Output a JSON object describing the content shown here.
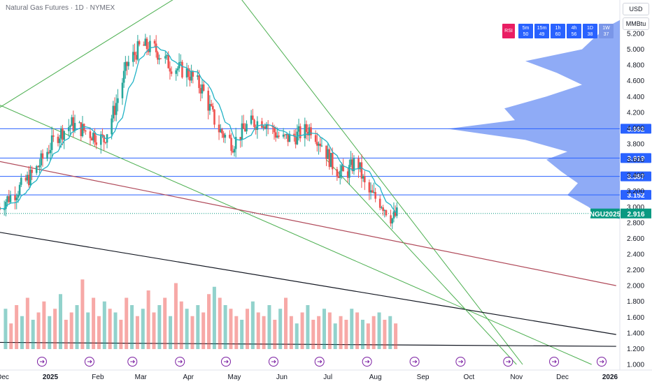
{
  "header": {
    "title": "Natural Gas Futures · 1D · NYMEX"
  },
  "currency_buttons": {
    "currency": "USD",
    "unit": "MMBtu"
  },
  "timeframe_strip": {
    "indicator": "RSI",
    "cells": [
      {
        "tf": "5m",
        "value": "50"
      },
      {
        "tf": "15m",
        "value": "49"
      },
      {
        "tf": "1h",
        "value": "60"
      },
      {
        "tf": "4h",
        "value": "56"
      },
      {
        "tf": "1D",
        "value": "38"
      },
      {
        "tf": "1W",
        "value": "37"
      }
    ]
  },
  "colors": {
    "up": "#26a69a",
    "down": "#ef5350",
    "ma": "#22b3c6",
    "hline": "#2962ff",
    "trend": "#4caf50",
    "red_trend": "#b04a5a",
    "black_trend": "#131722",
    "profile": "#7b9cf5",
    "current": "#089981"
  },
  "chart_data": {
    "type": "candlestick",
    "title": "Natural Gas Futures · 1D · NYMEX",
    "ylim": [
      1.0,
      5.4
    ],
    "y_ticks": [
      "5.200",
      "5.000",
      "4.800",
      "4.600",
      "4.400",
      "4.200",
      "4.000",
      "3.800",
      "3.600",
      "3.400",
      "3.200",
      "3.000",
      "2.800",
      "2.600",
      "2.400",
      "2.200",
      "2.000",
      "1.800",
      "1.600",
      "1.400",
      "1.200",
      "1.000"
    ],
    "x_ticks": [
      {
        "label": "Dec",
        "date": "2024-12-01"
      },
      {
        "label": "2025",
        "date": "2025-01-01",
        "year": true
      },
      {
        "label": "Feb",
        "date": "2025-02-01"
      },
      {
        "label": "Mar",
        "date": "2025-03-01"
      },
      {
        "label": "Apr",
        "date": "2025-04-01"
      },
      {
        "label": "May",
        "date": "2025-05-01"
      },
      {
        "label": "Jun",
        "date": "2025-06-01"
      },
      {
        "label": "Jul",
        "date": "2025-07-01"
      },
      {
        "label": "Aug",
        "date": "2025-08-01"
      },
      {
        "label": "Sep",
        "date": "2025-09-01"
      },
      {
        "label": "Oct",
        "date": "2025-10-01"
      },
      {
        "label": "Nov",
        "date": "2025-11-01"
      },
      {
        "label": "Dec",
        "date": "2025-12-01"
      },
      {
        "label": "2026",
        "date": "2026-01-01",
        "year": true
      }
    ],
    "key_levels": [
      3.992,
      3.619,
      3.387,
      3.152
    ],
    "level_labels": [
      "3.992",
      "3.619",
      "3.387",
      "3.152"
    ],
    "current_price": {
      "symbol": "NGU2025",
      "value": "2.916"
    },
    "price_path": [
      {
        "date": "2024-11-28",
        "price": 3.0
      },
      {
        "date": "2024-12-10",
        "price": 3.2
      },
      {
        "date": "2024-12-22",
        "price": 3.45
      },
      {
        "date": "2025-01-05",
        "price": 3.9
      },
      {
        "date": "2025-01-15",
        "price": 4.05
      },
      {
        "date": "2025-01-25",
        "price": 3.95
      },
      {
        "date": "2025-02-05",
        "price": 3.85
      },
      {
        "date": "2025-02-12",
        "price": 4.25
      },
      {
        "date": "2025-02-20",
        "price": 4.8
      },
      {
        "date": "2025-03-01",
        "price": 5.05
      },
      {
        "date": "2025-03-10",
        "price": 5.0
      },
      {
        "date": "2025-03-20",
        "price": 4.8
      },
      {
        "date": "2025-04-01",
        "price": 4.7
      },
      {
        "date": "2025-04-10",
        "price": 4.5
      },
      {
        "date": "2025-04-20",
        "price": 4.0
      },
      {
        "date": "2025-04-30",
        "price": 3.8
      },
      {
        "date": "2025-05-10",
        "price": 4.05
      },
      {
        "date": "2025-05-20",
        "price": 4.1
      },
      {
        "date": "2025-06-01",
        "price": 3.85
      },
      {
        "date": "2025-06-10",
        "price": 3.9
      },
      {
        "date": "2025-06-20",
        "price": 4.0
      },
      {
        "date": "2025-06-27",
        "price": 3.8
      },
      {
        "date": "2025-07-05",
        "price": 3.5
      },
      {
        "date": "2025-07-12",
        "price": 3.4
      },
      {
        "date": "2025-07-20",
        "price": 3.6
      },
      {
        "date": "2025-07-26",
        "price": 3.2
      },
      {
        "date": "2025-08-05",
        "price": 3.05
      },
      {
        "date": "2025-08-12",
        "price": 2.85
      },
      {
        "date": "2025-08-16",
        "price": 2.92
      }
    ],
    "volume_profile": [
      {
        "price": 5.3,
        "v": 0.05
      },
      {
        "price": 5.15,
        "v": 0.12
      },
      {
        "price": 5.0,
        "v": 0.18
      },
      {
        "price": 4.85,
        "v": 0.45
      },
      {
        "price": 4.7,
        "v": 0.3
      },
      {
        "price": 4.55,
        "v": 0.18
      },
      {
        "price": 4.4,
        "v": 0.35
      },
      {
        "price": 4.25,
        "v": 0.55
      },
      {
        "price": 4.1,
        "v": 0.5
      },
      {
        "price": 3.99,
        "v": 0.82
      },
      {
        "price": 3.85,
        "v": 0.45
      },
      {
        "price": 3.7,
        "v": 0.25
      },
      {
        "price": 3.6,
        "v": 0.35
      },
      {
        "price": 3.45,
        "v": 0.28
      },
      {
        "price": 3.3,
        "v": 0.2
      },
      {
        "price": 3.15,
        "v": 0.25
      },
      {
        "price": 3.0,
        "v": 0.15
      },
      {
        "price": 2.9,
        "v": 0.1
      }
    ],
    "volume": [
      0.55,
      0.35,
      0.6,
      0.45,
      0.7,
      0.4,
      0.5,
      0.65,
      0.45,
      0.55,
      0.75,
      0.4,
      0.5,
      0.6,
      0.95,
      0.5,
      0.7,
      0.45,
      0.65,
      0.55,
      0.5,
      0.4,
      0.7,
      0.6,
      0.45,
      0.55,
      0.8,
      0.5,
      0.6,
      0.7,
      0.45,
      0.9,
      0.65,
      0.55,
      0.45,
      0.6,
      0.5,
      0.75,
      0.85,
      0.7,
      0.6,
      0.55,
      0.45,
      0.4,
      0.55,
      0.65,
      0.5,
      0.45,
      0.6,
      0.4,
      0.55,
      0.7,
      0.45,
      0.35,
      0.5,
      0.6,
      0.4,
      0.45,
      0.55,
      0.5,
      0.35,
      0.45,
      0.4,
      0.55,
      0.5,
      0.4,
      0.35,
      0.45,
      0.5,
      0.4,
      0.45,
      0.35
    ],
    "event_markers": [
      "2025-01-01",
      "2025-02-01",
      "2025-03-01",
      "2025-04-01",
      "2025-05-01",
      "2025-06-01",
      "2025-07-01",
      "2025-08-01",
      "2025-09-01",
      "2025-10-01",
      "2025-11-01",
      "2025-12-01",
      "2026-01-01"
    ],
    "trend_lines": [
      {
        "name": "upper-green",
        "from": {
          "date": "2024-11-28",
          "price": 4.25
        },
        "to": {
          "date": "2025-04-01",
          "price": 5.75
        }
      },
      {
        "name": "steep-green",
        "from": {
          "date": "2025-05-01",
          "price": 5.75
        },
        "to": {
          "date": "2025-11-05",
          "price": 1.0
        }
      },
      {
        "name": "channel-green",
        "from": {
          "date": "2024-11-28",
          "price": 4.3
        },
        "to": {
          "date": "2025-12-20",
          "price": 1.0
        }
      },
      {
        "name": "red-trend",
        "from": {
          "date": "2024-11-28",
          "price": 3.58
        },
        "to": {
          "date": "2026-01-05",
          "price": 2.0
        }
      },
      {
        "name": "black-trend",
        "from": {
          "date": "2024-11-28",
          "price": 2.68
        },
        "to": {
          "date": "2026-01-05",
          "price": 1.38
        }
      },
      {
        "name": "black-flat",
        "from": {
          "date": "2024-11-28",
          "price": 1.28
        },
        "to": {
          "date": "2026-01-05",
          "price": 1.23
        }
      },
      {
        "name": "short-green",
        "from": {
          "date": "2025-06-30",
          "price": 3.6
        },
        "to": {
          "date": "2025-11-01",
          "price": 1.0
        }
      }
    ]
  }
}
